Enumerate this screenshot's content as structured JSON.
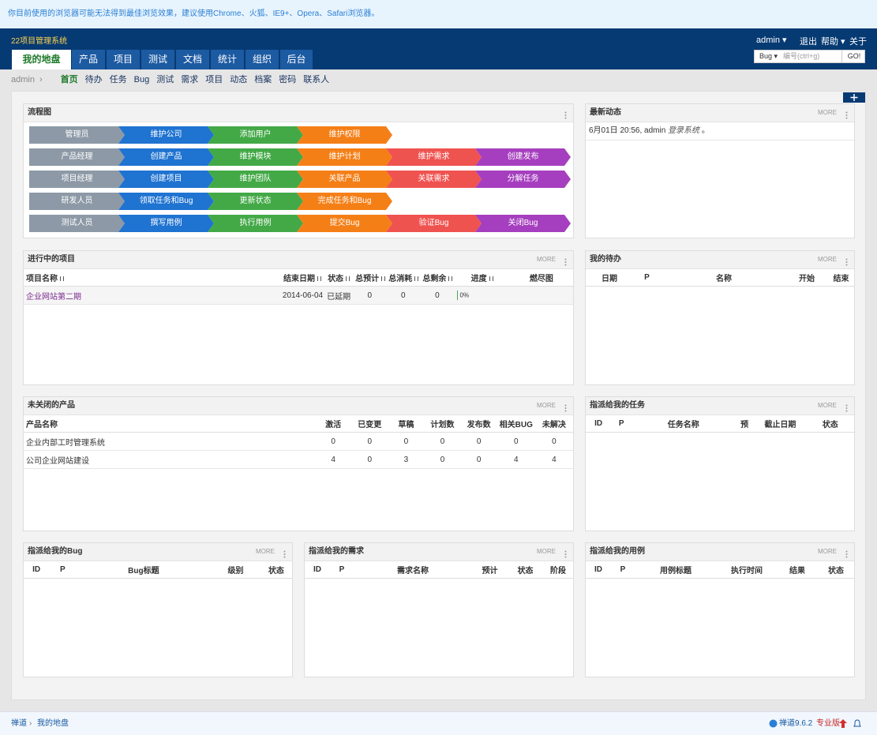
{
  "notice": "你目前使用的浏览器可能无法得到最佳浏览效果，建议使用Chrome、火狐、IE9+、Opera、Safari浏览器。",
  "header": {
    "brand": "22项目管理系统",
    "user": "admin",
    "logout": "退出",
    "help": "帮助",
    "about": "关于",
    "nav": [
      "我的地盘",
      "产品",
      "项目",
      "测试",
      "文档",
      "统计",
      "组织",
      "后台"
    ],
    "search": {
      "type": "Bug",
      "placeholder": "编号(ctrl+g)",
      "button": "GO!"
    }
  },
  "subnav": {
    "user": "admin",
    "items": [
      "首页",
      "待办",
      "任务",
      "Bug",
      "测试",
      "需求",
      "项目",
      "动态",
      "档案",
      "密码",
      "联系人"
    ]
  },
  "more": "MORE",
  "flow": {
    "title": "流程图",
    "rows": [
      [
        "管理员",
        "维护公司",
        "添加用户",
        "维护权限"
      ],
      [
        "产品经理",
        "创建产品",
        "维护模块",
        "维护计划",
        "维护需求",
        "创建发布"
      ],
      [
        "项目经理",
        "创建项目",
        "维护团队",
        "关联产品",
        "关联需求",
        "分解任务"
      ],
      [
        "研发人员",
        "领取任务和Bug",
        "更新状态",
        "完成任务和Bug"
      ],
      [
        "测试人员",
        "撰写用例",
        "执行用例",
        "提交Bug",
        "验证Bug",
        "关闭Bug"
      ]
    ]
  },
  "dynamic": {
    "title": "最新动态",
    "items": [
      {
        "date": "6月01日 20:56, admin",
        "action": "登录系统",
        "end": "。"
      }
    ]
  },
  "projects": {
    "title": "进行中的项目",
    "columns": [
      "项目名称",
      "结束日期",
      "状态",
      "总预计",
      "总消耗",
      "总剩余",
      "进度",
      "燃尽图"
    ],
    "rows": [
      [
        "企业网站第二期",
        "2014-06-04",
        "已延期",
        0,
        0,
        0,
        "0%",
        null
      ]
    ]
  },
  "todo": {
    "title": "我的待办",
    "columns": [
      "日期",
      "P",
      "名称",
      "开始",
      "结束"
    ],
    "rows": []
  },
  "products": {
    "title": "未关闭的产品",
    "columns": [
      "产品名称",
      "激活",
      "已变更",
      "草稿",
      "计划数",
      "发布数",
      "相关BUG",
      "未解决"
    ],
    "rows": [
      [
        "企业内部工时管理系统",
        0,
        0,
        0,
        0,
        0,
        0,
        0
      ],
      [
        "公司企业网站建设",
        4,
        0,
        3,
        0,
        0,
        4,
        4
      ]
    ]
  },
  "tasks": {
    "title": "指派给我的任务",
    "columns": [
      "ID",
      "P",
      "任务名称",
      "预",
      "截止日期",
      "状态"
    ],
    "rows": []
  },
  "bugs": {
    "title": "指派给我的Bug",
    "columns": [
      "ID",
      "P",
      "Bug标题",
      "级别",
      "状态"
    ],
    "rows": []
  },
  "stories": {
    "title": "指派给我的需求",
    "columns": [
      "ID",
      "P",
      "需求名称",
      "预计",
      "状态",
      "阶段"
    ],
    "rows": []
  },
  "cases": {
    "title": "指派给我的用例",
    "columns": [
      "ID",
      "P",
      "用例标题",
      "执行时间",
      "结果",
      "状态"
    ],
    "rows": []
  },
  "footer": {
    "home": "禅道",
    "current": "我的地盘",
    "version": "禅道9.6.2",
    "edition": "专业版"
  }
}
